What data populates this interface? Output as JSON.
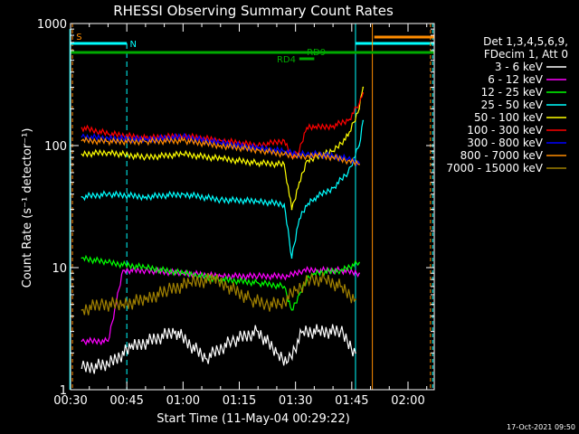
{
  "chart_data": {
    "type": "line",
    "title": "RHESSI Observing Summary Count Rates",
    "xlabel": "Start Time (11-May-04 00:29:22)",
    "ylabel": "Count Rate (s⁻¹ detector⁻¹)",
    "y_scale": "log",
    "ylim": [
      1,
      1000
    ],
    "xlim_minutes_after_0030": [
      0,
      97
    ],
    "x_ticks": [
      {
        "minute": 0,
        "label": "00:30"
      },
      {
        "minute": 15,
        "label": "00:45"
      },
      {
        "minute": 30,
        "label": "01:00"
      },
      {
        "minute": 45,
        "label": "01:15"
      },
      {
        "minute": 60,
        "label": "01:30"
      },
      {
        "minute": 75,
        "label": "01:45"
      },
      {
        "minute": 90,
        "label": "02:00"
      }
    ],
    "y_ticks": [
      {
        "value": 1,
        "label": "1"
      },
      {
        "value": 10,
        "label": "10"
      },
      {
        "value": 100,
        "label": "100"
      },
      {
        "value": 1000,
        "label": "1000"
      }
    ],
    "legend_header": [
      "Det 1,3,4,5,6,9,",
      "FDecim 1, Att 0"
    ],
    "legend_placement": "right",
    "series": [
      {
        "name": "3 - 6 keV",
        "color": "#ffffff",
        "x": [
          3,
          10,
          16,
          28,
          36,
          43,
          50,
          55,
          58,
          62,
          66,
          72,
          76
        ],
        "y": [
          1.5,
          1.6,
          2.2,
          3.0,
          1.8,
          2.5,
          3.0,
          2.0,
          1.7,
          3.0,
          3.0,
          3.0,
          2.0
        ]
      },
      {
        "name": "6 - 12 keV",
        "color": "#ff00ff",
        "x": [
          3,
          10,
          14,
          20,
          30,
          40,
          50,
          58,
          62,
          66,
          72,
          77
        ],
        "y": [
          2.5,
          2.5,
          9.5,
          9.5,
          9.0,
          8.5,
          8.5,
          8.5,
          9.5,
          9.5,
          9.5,
          9.0
        ]
      },
      {
        "name": "12 - 25 keV",
        "color": "#00ff00",
        "x": [
          3,
          10,
          20,
          30,
          40,
          50,
          57,
          59,
          61,
          63,
          65,
          72,
          77
        ],
        "y": [
          12,
          11,
          10,
          9,
          8,
          7.5,
          7,
          4.5,
          6,
          8,
          9,
          9.5,
          11
        ]
      },
      {
        "name": "25 - 50 keV",
        "color": "#00ffff",
        "x": [
          3,
          10,
          20,
          30,
          40,
          50,
          57,
          59,
          61,
          63,
          65,
          70,
          74,
          77,
          78
        ],
        "y": [
          38,
          40,
          38,
          40,
          36,
          35,
          33,
          12,
          25,
          32,
          37,
          45,
          60,
          100,
          160
        ]
      },
      {
        "name": "50 - 100 keV",
        "color": "#ffff00",
        "x": [
          3,
          10,
          20,
          30,
          40,
          50,
          57,
          59,
          61,
          63,
          65,
          70,
          74,
          77,
          78
        ],
        "y": [
          85,
          88,
          80,
          85,
          78,
          72,
          70,
          30,
          50,
          75,
          80,
          90,
          120,
          200,
          300
        ]
      },
      {
        "name": "100 - 300 keV",
        "color": "#ff0000",
        "x": [
          3,
          10,
          20,
          30,
          40,
          50,
          57,
          59,
          61,
          63,
          65,
          70,
          74,
          77,
          78
        ],
        "y": [
          140,
          125,
          115,
          120,
          110,
          100,
          110,
          80,
          90,
          140,
          140,
          145,
          160,
          220,
          270
        ]
      },
      {
        "name": "300 - 800 keV",
        "color": "#0000ff",
        "x": [
          3,
          10,
          20,
          30,
          40,
          50,
          57,
          60,
          63,
          66,
          70,
          74,
          77
        ],
        "y": [
          118,
          115,
          112,
          118,
          105,
          95,
          90,
          85,
          85,
          85,
          82,
          78,
          72
        ]
      },
      {
        "name": "800 - 7000 keV",
        "color": "#ff8c00",
        "x": [
          3,
          10,
          20,
          30,
          40,
          50,
          57,
          60,
          63,
          66,
          70,
          74,
          77
        ],
        "y": [
          110,
          108,
          108,
          110,
          100,
          92,
          85,
          82,
          82,
          83,
          80,
          75,
          70
        ]
      },
      {
        "name": "7000 - 15000 keV",
        "color": "#a08000",
        "x": [
          3,
          8,
          14,
          20,
          26,
          32,
          38,
          42,
          48,
          52,
          56,
          60,
          64,
          68,
          72,
          76
        ],
        "y": [
          4.5,
          5.0,
          5.0,
          5.5,
          6.5,
          7.5,
          8.0,
          7.0,
          5.5,
          5.0,
          5.0,
          6.5,
          8.0,
          8.0,
          7.0,
          5.5
        ]
      }
    ],
    "annotations": [
      {
        "text": "S",
        "color": "#ff8c00"
      },
      {
        "text": "N",
        "color": "#00ffff"
      },
      {
        "text": "RD9",
        "color": "#00aa00"
      },
      {
        "text": "RD4",
        "color": "#00aa00"
      }
    ],
    "footer": "17-Oct-2021 09:50"
  }
}
